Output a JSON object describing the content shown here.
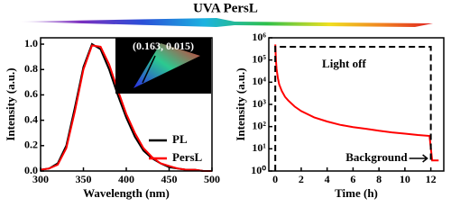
{
  "title": "UVA PersL",
  "chart_data": [
    {
      "type": "line",
      "x_label": "Wavelength (nm)",
      "y_label": "Intensity (a.u.)",
      "x": [
        300,
        310,
        320,
        330,
        340,
        350,
        360,
        370,
        380,
        390,
        400,
        410,
        420,
        430,
        440,
        450,
        460,
        470,
        480,
        490,
        500
      ],
      "series": [
        {
          "name": "PL",
          "color": "#000000",
          "values": [
            0.01,
            0.02,
            0.06,
            0.2,
            0.5,
            0.82,
            1.0,
            0.96,
            0.8,
            0.6,
            0.42,
            0.27,
            0.16,
            0.1,
            0.06,
            0.03,
            0.02,
            0.01,
            0.01,
            0,
            0
          ]
        },
        {
          "name": "PersL",
          "color": "#ff0000",
          "values": [
            0.01,
            0.02,
            0.05,
            0.18,
            0.47,
            0.8,
            0.99,
            0.98,
            0.84,
            0.64,
            0.45,
            0.3,
            0.18,
            0.11,
            0.06,
            0.04,
            0.02,
            0.01,
            0.01,
            0,
            0
          ]
        }
      ],
      "xlim": [
        300,
        500
      ],
      "xticks": [
        300,
        350,
        400,
        450,
        500
      ],
      "ylim": [
        0,
        1.05
      ],
      "yticks": [
        {
          "value": 0,
          "label": "0.0"
        },
        0.2,
        0.4,
        0.6,
        0.8,
        {
          "value": 1,
          "label": "1.0"
        }
      ],
      "legend": "lower right",
      "annotations": [
        "(0.163, 0.015)"
      ]
    },
    {
      "type": "line",
      "x_label": "Time (h)",
      "y_label": "Intensity (a.u.)",
      "x": [
        0,
        0.05,
        0.1,
        0.2,
        0.3,
        0.5,
        0.75,
        1,
        1.5,
        2,
        3,
        4,
        5,
        6,
        7,
        8,
        9,
        10,
        11,
        11.9,
        12.1,
        12.3,
        12.6
      ],
      "series": [
        {
          "name": null,
          "color": "#ff0000",
          "values": [
            500000,
            100000,
            40000,
            15000,
            8000,
            4000,
            2200,
            1500,
            800,
            500,
            260,
            170,
            120,
            95,
            80,
            65,
            55,
            48,
            42,
            38,
            3,
            3,
            3
          ]
        }
      ],
      "xlim": [
        -0.5,
        13
      ],
      "xticks": [
        0,
        2,
        4,
        6,
        8,
        10,
        12
      ],
      "log_y": true,
      "ylim": [
        1,
        1000000
      ],
      "yticks": [
        {
          "value": 1,
          "label": "10⁰"
        },
        {
          "value": 10,
          "label": "10¹"
        },
        {
          "value": 100,
          "label": "10²"
        },
        {
          "value": 1000,
          "label": "10³"
        },
        {
          "value": 10000,
          "label": "10⁴"
        },
        {
          "value": 100000,
          "label": "10⁵"
        },
        {
          "value": 1000000,
          "label": "10⁶"
        }
      ],
      "annotations": [
        "Light off",
        "Background"
      ]
    }
  ]
}
